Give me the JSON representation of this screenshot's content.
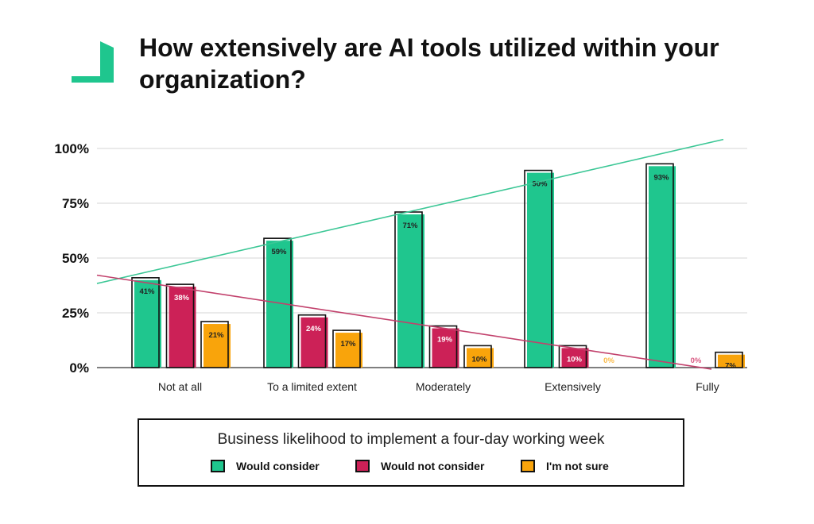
{
  "title": "How extensively are AI tools utilized within your organization?",
  "chart_data": {
    "type": "bar",
    "categories": [
      "Not at all",
      "To a limited extent",
      "Moderately",
      "Extensively",
      "Fully"
    ],
    "series": [
      {
        "name": "Would consider",
        "color": "#1fc68e",
        "values": [
          41,
          59,
          71,
          90,
          93
        ],
        "labels": [
          "41%",
          "59%",
          "71%",
          "90%",
          "93%"
        ]
      },
      {
        "name": "Would not consider",
        "color": "#cc2157",
        "values": [
          38,
          24,
          19,
          10,
          0
        ],
        "labels": [
          "38%",
          "24%",
          "19%",
          "10%",
          "0%"
        ]
      },
      {
        "name": "I'm not sure",
        "color": "#f9a40b",
        "values": [
          21,
          17,
          10,
          0,
          7
        ],
        "labels": [
          "21%",
          "17%",
          "10%",
          "0%",
          "7%"
        ]
      }
    ],
    "trendlines": [
      "Would consider",
      "Would not consider"
    ],
    "yticks": [
      "0%",
      "25%",
      "50%",
      "75%",
      "100%"
    ],
    "ylim": [
      0,
      100
    ],
    "grid": true,
    "legend": {
      "title": "Business likelihood to implement a four-day working week",
      "placement": "bottom"
    }
  }
}
